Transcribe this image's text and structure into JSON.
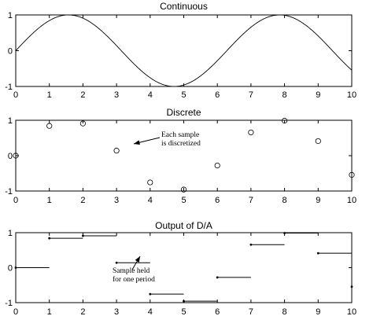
{
  "chart_data": [
    {
      "type": "line",
      "title": "Continuous",
      "xlim": [
        0,
        10
      ],
      "ylim": [
        -1,
        1
      ],
      "xticks": [
        "0",
        "1",
        "2",
        "3",
        "4",
        "5",
        "6",
        "7",
        "8",
        "9",
        "10"
      ],
      "yticks": [
        "1",
        "0",
        "-1"
      ],
      "function": "sin(x)",
      "x": [
        0,
        0.25,
        0.5,
        0.75,
        1,
        1.25,
        1.5,
        1.75,
        2,
        2.25,
        2.5,
        2.75,
        3,
        3.25,
        3.5,
        3.75,
        4,
        4.25,
        4.5,
        4.75,
        5,
        5.25,
        5.5,
        5.75,
        6,
        6.25,
        6.5,
        6.75,
        7,
        7.25,
        7.5,
        7.75,
        8,
        8.25,
        8.5,
        8.75,
        9,
        9.25,
        9.5,
        9.75,
        10
      ],
      "y": [
        0,
        0.247,
        0.479,
        0.682,
        0.841,
        0.949,
        0.997,
        0.984,
        0.909,
        0.778,
        0.598,
        0.382,
        0.141,
        -0.108,
        -0.351,
        -0.572,
        -0.757,
        -0.895,
        -0.978,
        -0.999,
        -0.959,
        -0.859,
        -0.706,
        -0.508,
        -0.279,
        -0.033,
        0.215,
        0.45,
        0.657,
        0.823,
        0.938,
        0.994,
        0.989,
        0.925,
        0.798,
        0.624,
        0.412,
        0.174,
        -0.075,
        -0.319,
        -0.544
      ]
    },
    {
      "type": "scatter",
      "title": "Discrete",
      "xlim": [
        0,
        10
      ],
      "ylim": [
        -1,
        1
      ],
      "xticks": [
        "0",
        "1",
        "2",
        "3",
        "4",
        "5",
        "6",
        "7",
        "8",
        "9",
        "10"
      ],
      "yticks": [
        "1",
        "0",
        "-1"
      ],
      "x": [
        0,
        1,
        2,
        3,
        4,
        5,
        6,
        7,
        8,
        9,
        10
      ],
      "y": [
        0,
        0.841,
        0.909,
        0.141,
        -0.757,
        -0.959,
        -0.279,
        0.657,
        0.989,
        0.412,
        -0.544
      ],
      "annotation": {
        "lines": [
          "Each sample",
          "is discretized"
        ]
      }
    },
    {
      "type": "line",
      "title": "Output of D/A",
      "xlim": [
        0,
        10
      ],
      "ylim": [
        -1,
        1
      ],
      "xticks": [
        "0",
        "1",
        "2",
        "3",
        "4",
        "5",
        "6",
        "7",
        "8",
        "9",
        "10"
      ],
      "yticks": [
        "1",
        "0",
        "-1"
      ],
      "step": "zero-order-hold",
      "x": [
        0,
        1,
        2,
        3,
        4,
        5,
        6,
        7,
        8,
        9,
        10
      ],
      "y": [
        0,
        0.841,
        0.909,
        0.141,
        -0.757,
        -0.959,
        -0.279,
        0.657,
        0.989,
        0.412,
        -0.544
      ],
      "annotation": {
        "lines": [
          "Sample held",
          "for one period"
        ]
      }
    }
  ]
}
